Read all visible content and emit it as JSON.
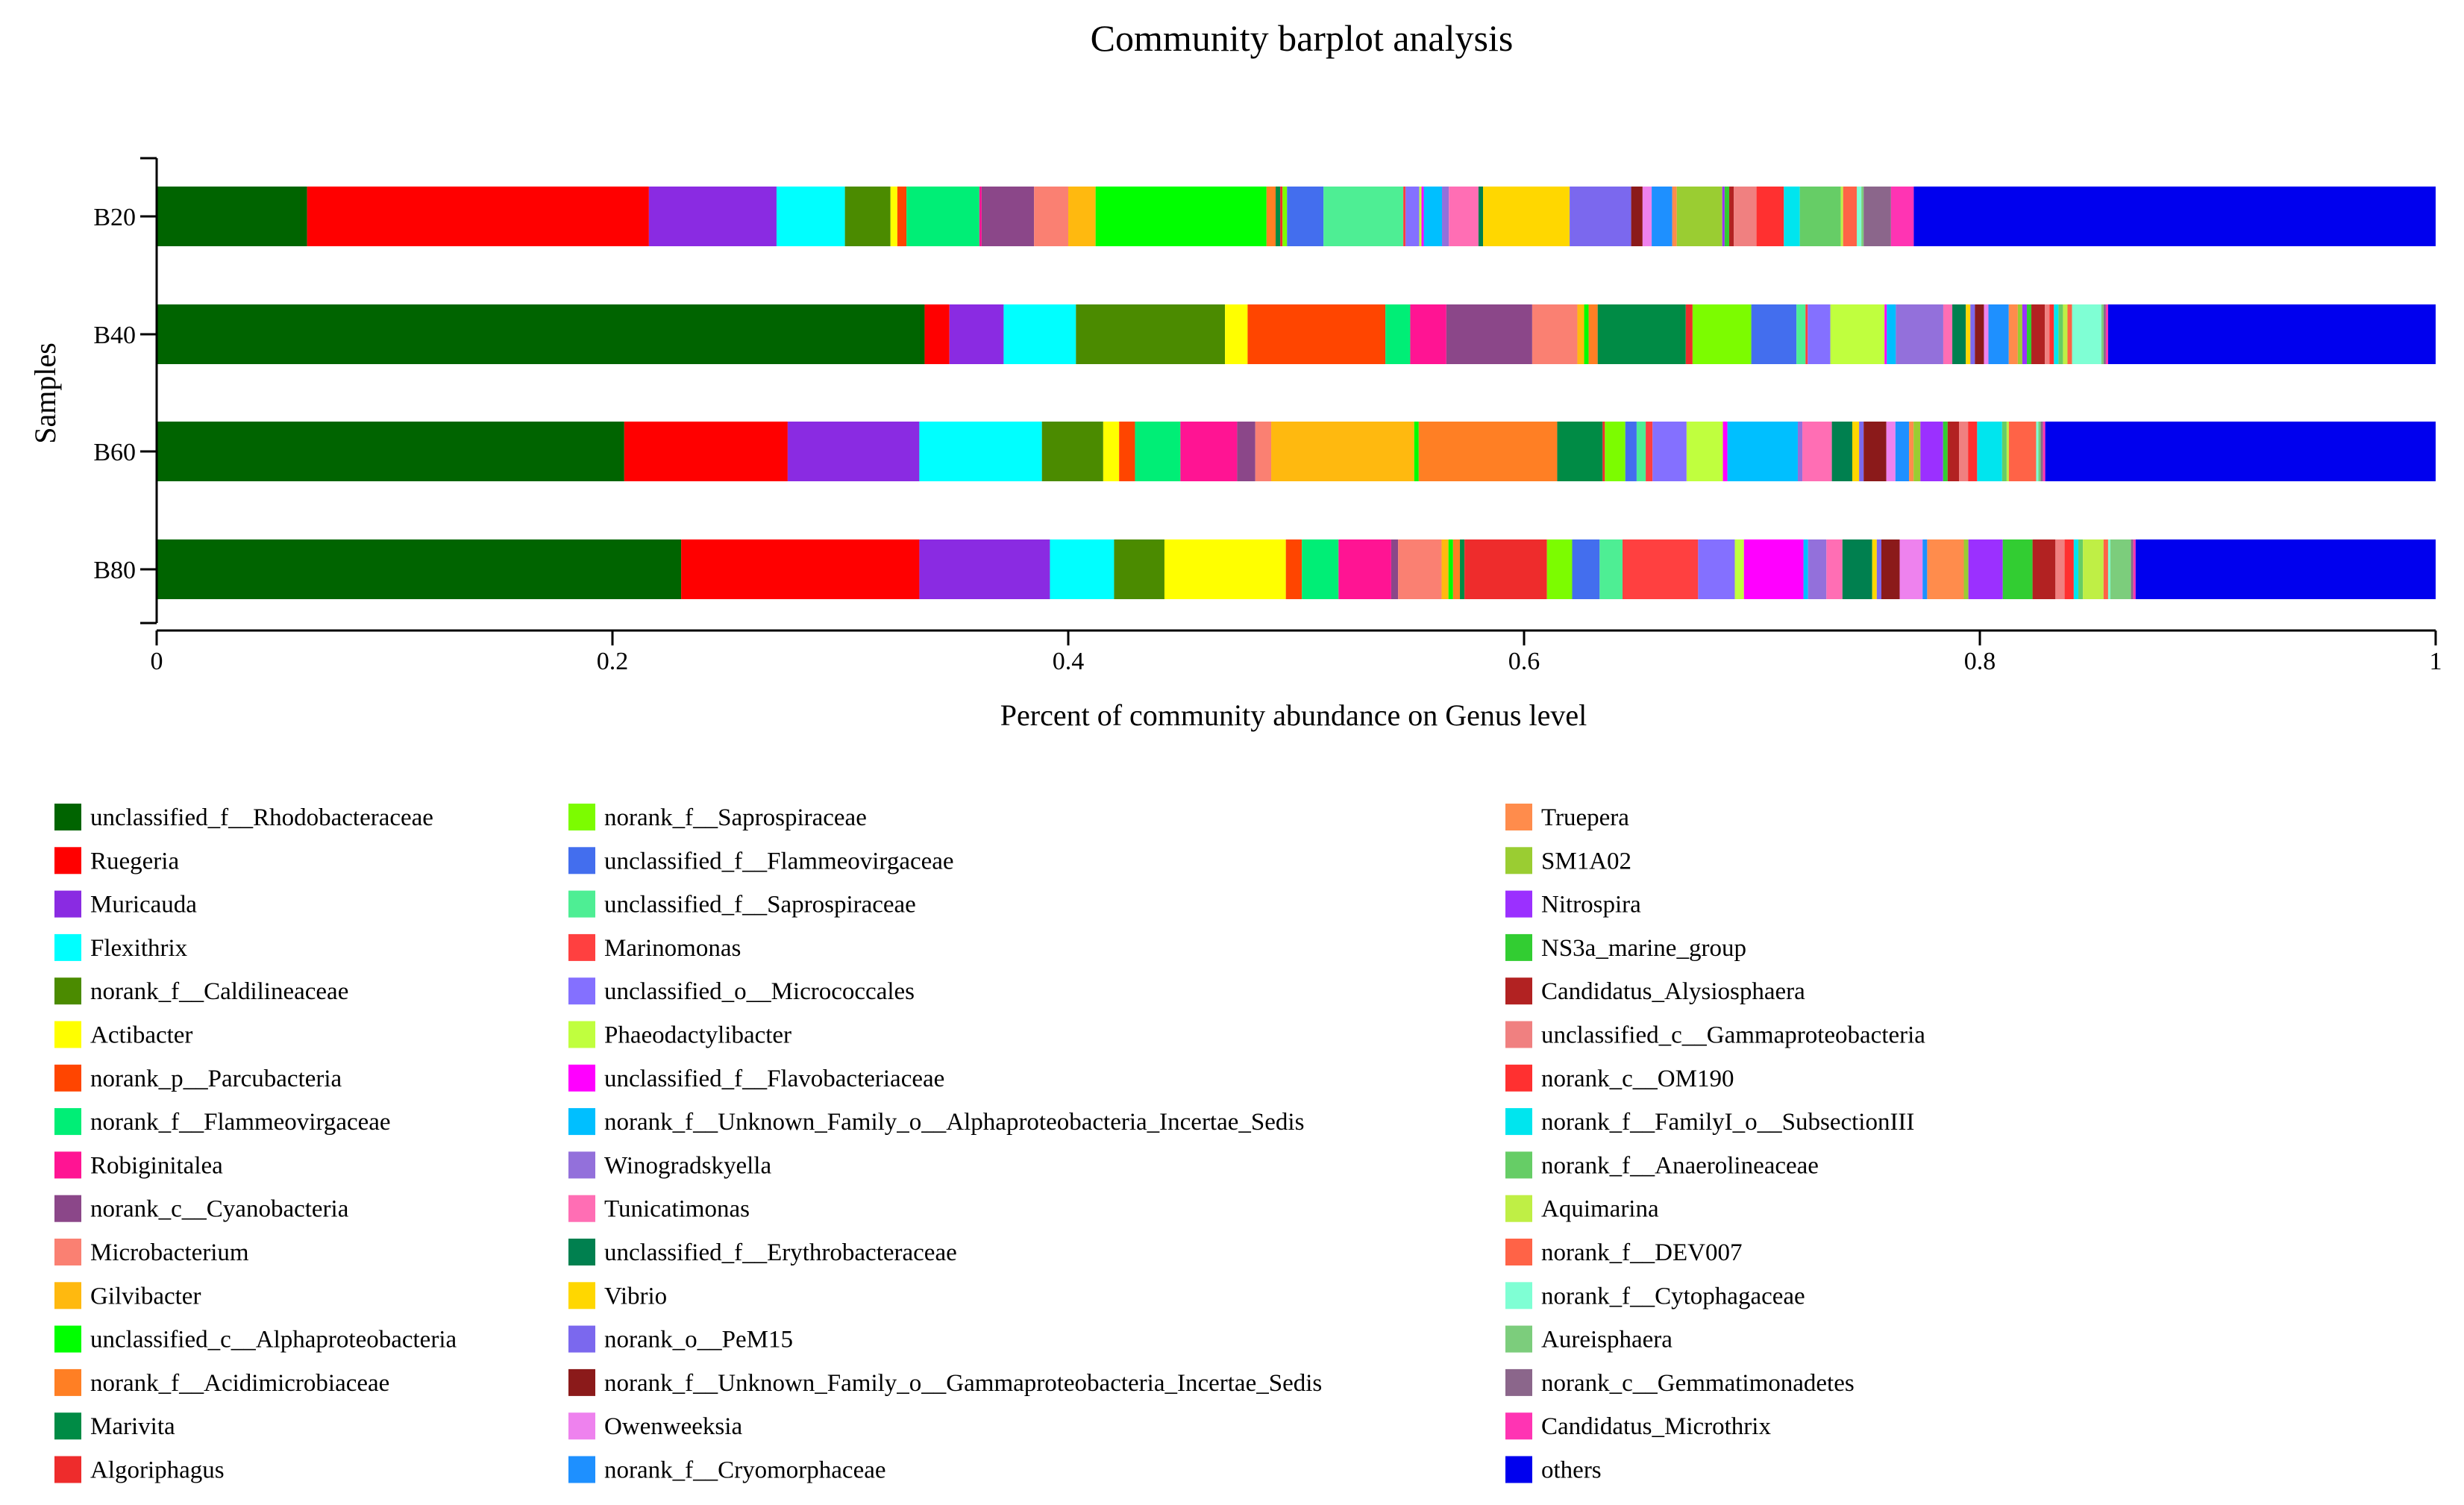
{
  "chart_data": {
    "type": "bar",
    "orientation": "horizontal",
    "stacked": true,
    "title": "Community barplot analysis",
    "xlabel": "Percent of community abundance on Genus level",
    "ylabel": "Samples",
    "xlim": [
      0,
      1
    ],
    "xticks": [
      {
        "value": 0,
        "label": "0"
      },
      {
        "value": 0.2,
        "label": "0.2"
      },
      {
        "value": 0.4,
        "label": "0.4"
      },
      {
        "value": 0.6,
        "label": "0.6"
      },
      {
        "value": 0.8,
        "label": "0.8"
      },
      {
        "value": 1,
        "label": "1"
      }
    ],
    "categories": [
      "B20",
      "B40",
      "B60",
      "B80"
    ],
    "series": [
      {
        "name": "unclassified_f__Rhodobacteraceae",
        "color": "#006400",
        "values": [
          0.066,
          0.34,
          0.206,
          0.229
        ]
      },
      {
        "name": "Ruegeria",
        "color": "#FF0000",
        "values": [
          0.15,
          0.011,
          0.072,
          0.104
        ]
      },
      {
        "name": "Muricauda",
        "color": "#8A2BE2",
        "values": [
          0.056,
          0.024,
          0.058,
          0.057
        ]
      },
      {
        "name": "Flexithrix",
        "color": "#00FFFF",
        "values": [
          0.03,
          0.032,
          0.054,
          0.028
        ]
      },
      {
        "name": "norank_f__Caldilineaceae",
        "color": "#4B8B00",
        "values": [
          0.02,
          0.066,
          0.027,
          0.022
        ]
      },
      {
        "name": "Actibacter",
        "color": "#FFFF00",
        "values": [
          0.003,
          0.01,
          0.007,
          0.053
        ]
      },
      {
        "name": "norank_p__Parcubacteria",
        "color": "#FF4500",
        "values": [
          0.004,
          0.061,
          0.007,
          0.007
        ]
      },
      {
        "name": "norank_f__Flammeovirgaceae",
        "color": "#00EE76",
        "values": [
          0.032,
          0.011,
          0.02,
          0.016
        ]
      },
      {
        "name": "Robiginitalea",
        "color": "#FF1493",
        "values": [
          0.001,
          0.016,
          0.025,
          0.023
        ]
      },
      {
        "name": "norank_c__Cyanobacteria",
        "color": "#8B4789",
        "values": [
          0.023,
          0.038,
          0.008,
          0.003
        ]
      },
      {
        "name": "Microbacterium",
        "color": "#FA8072",
        "values": [
          0.015,
          0.02,
          0.007,
          0.019
        ]
      },
      {
        "name": "Gilvibacter",
        "color": "#FFB90F",
        "values": [
          0.012,
          0.003,
          0.063,
          0.003
        ]
      },
      {
        "name": "unclassified_c__Alphaproteobacteria",
        "color": "#00FF00",
        "values": [
          0.075,
          0.002,
          0.002,
          0.002
        ]
      },
      {
        "name": "norank_f__Acidimicrobiaceae",
        "color": "#FF7F24",
        "values": [
          0.004,
          0.004,
          0.061,
          0.003
        ]
      },
      {
        "name": "Marivita",
        "color": "#008B45",
        "values": [
          0.002,
          0.039,
          0.02,
          0.002
        ]
      },
      {
        "name": "Algoriphagus",
        "color": "#EE2C2C",
        "values": [
          0.001,
          0.003,
          0.001,
          0.036
        ]
      },
      {
        "name": "norank_f__Saprospiraceae",
        "color": "#7CFC00",
        "values": [
          0.002,
          0.026,
          0.009,
          0.011
        ]
      },
      {
        "name": "unclassified_f__Flammeovirgaceae",
        "color": "#436EEE",
        "values": [
          0.016,
          0.02,
          0.005,
          0.012
        ]
      },
      {
        "name": "unclassified_f__Saprospiraceae",
        "color": "#4EEE94",
        "values": [
          0.035,
          0.004,
          0.004,
          0.01
        ]
      },
      {
        "name": "Marinomonas",
        "color": "#FF4040",
        "values": [
          0.001,
          0.001,
          0.003,
          0.033
        ]
      },
      {
        "name": "unclassified_o__Micrococcales",
        "color": "#8470FF",
        "values": [
          0.006,
          0.01,
          0.015,
          0.016
        ]
      },
      {
        "name": "Phaeodactylibacter",
        "color": "#C0FF3E",
        "values": [
          0.001,
          0.024,
          0.016,
          0.004
        ]
      },
      {
        "name": "unclassified_f__Flavobacteriaceae",
        "color": "#FF00FF",
        "values": [
          0.001,
          0.001,
          0.002,
          0.026
        ]
      },
      {
        "name": "norank_f__Unknown_Family_o__Alphaproteobacteria_Incertae_Sedis",
        "color": "#00BFFF",
        "values": [
          0.008,
          0.004,
          0.031,
          0.002
        ]
      },
      {
        "name": "Winogradskyella",
        "color": "#9370DB",
        "values": [
          0.003,
          0.021,
          0.002,
          0.008
        ]
      },
      {
        "name": "Tunicatimonas",
        "color": "#FF6EB4",
        "values": [
          0.013,
          0.004,
          0.013,
          0.007
        ]
      },
      {
        "name": "unclassified_f__Erythrobacteraceae",
        "color": "#00804F",
        "values": [
          0.002,
          0.006,
          0.009,
          0.013
        ]
      },
      {
        "name": "Vibrio",
        "color": "#FFD700",
        "values": [
          0.038,
          0.002,
          0.003,
          0.002
        ]
      },
      {
        "name": "norank_o__PeM15",
        "color": "#7B68EE",
        "values": [
          0.027,
          0.002,
          0.002,
          0.002
        ]
      },
      {
        "name": "norank_f__Unknown_Family_o__Gammaproteobacteria_Incertae_Sedis",
        "color": "#8B1A1A",
        "values": [
          0.005,
          0.004,
          0.01,
          0.008
        ]
      },
      {
        "name": "Owenweeksia",
        "color": "#EE82EE",
        "values": [
          0.004,
          0.002,
          0.004,
          0.01
        ]
      },
      {
        "name": "norank_f__Cryomorphaceae",
        "color": "#1E90FF",
        "values": [
          0.009,
          0.009,
          0.006,
          0.002
        ]
      },
      {
        "name": "Truepera",
        "color": "#FF8C4C",
        "values": [
          0.002,
          0.004,
          0.002,
          0.016
        ]
      },
      {
        "name": "SM1A02",
        "color": "#9ACD32",
        "values": [
          0.02,
          0.002,
          0.003,
          0.002
        ]
      },
      {
        "name": "Nitrospira",
        "color": "#9B30FF",
        "values": [
          0.001,
          0.002,
          0.01,
          0.015
        ]
      },
      {
        "name": "NS3a_marine_group",
        "color": "#32CD32",
        "values": [
          0.002,
          0.002,
          0.002,
          0.013
        ]
      },
      {
        "name": "Candidatus_Alysiosphaera",
        "color": "#B22222",
        "values": [
          0.002,
          0.006,
          0.005,
          0.01
        ]
      },
      {
        "name": "unclassified_c__Gammaproteobacteria",
        "color": "#F08080",
        "values": [
          0.01,
          0.002,
          0.004,
          0.004
        ]
      },
      {
        "name": "norank_c__OM190",
        "color": "#FF3030",
        "values": [
          0.012,
          0.002,
          0.004,
          0.004
        ]
      },
      {
        "name": "norank_f__FamilyI_o__SubsectionIII",
        "color": "#00E5EE",
        "values": [
          0.007,
          0.002,
          0.011,
          0.002
        ]
      },
      {
        "name": "norank_f__Anaerolineaceae",
        "color": "#66CD66",
        "values": [
          0.018,
          0.002,
          0.002,
          0.002
        ]
      },
      {
        "name": "Aquimarina",
        "color": "#BFEF45",
        "values": [
          0.001,
          0.002,
          0.001,
          0.009
        ]
      },
      {
        "name": "norank_f__DEV007",
        "color": "#FF6347",
        "values": [
          0.006,
          0.002,
          0.012,
          0.002
        ]
      },
      {
        "name": "norank_f__Cytophagaceae",
        "color": "#7FFFD4",
        "values": [
          0.002,
          0.013,
          0.001,
          0.001
        ]
      },
      {
        "name": "Aureisphaera",
        "color": "#7CCD7C",
        "values": [
          0.001,
          0.001,
          0.001,
          0.009
        ]
      },
      {
        "name": "norank_c__Gemmatimonadetes",
        "color": "#8B668B",
        "values": [
          0.012,
          0.001,
          0.001,
          0.001
        ]
      },
      {
        "name": "Candidatus_Microthrix",
        "color": "#FF34B3",
        "values": [
          0.01,
          0.001,
          0.001,
          0.001
        ]
      },
      {
        "name": "others",
        "color": "#0000EE",
        "values": [
          0.229,
          0.145,
          0.172,
          0.131
        ]
      }
    ]
  }
}
